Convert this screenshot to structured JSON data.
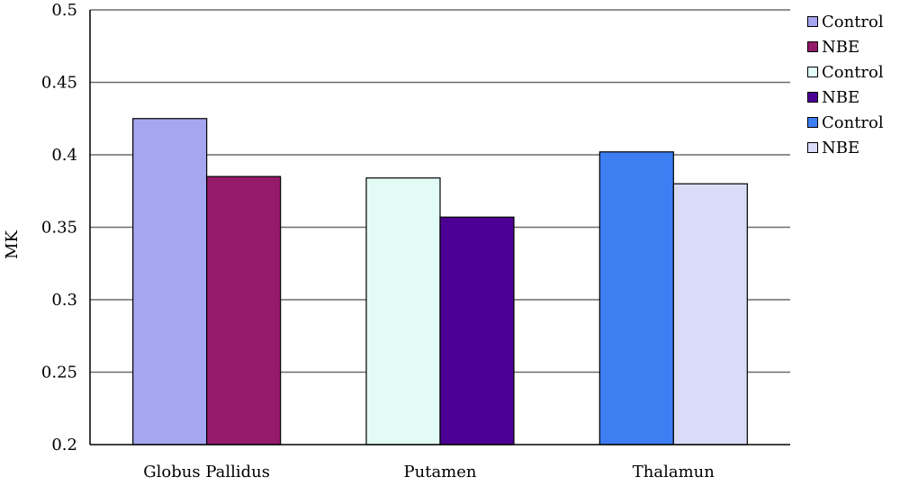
{
  "chart_data": {
    "type": "bar",
    "title": "",
    "xlabel": "",
    "ylabel": "MK",
    "ylim": [
      0.2,
      0.5
    ],
    "yticks": [
      "0.2",
      "0.25",
      "0.3",
      "0.35",
      "0.4",
      "0.45",
      "0.5"
    ],
    "grid": true,
    "legend_position": "right",
    "groups": [
      {
        "category": "Globus Pallidus",
        "bars": [
          {
            "name": "Control",
            "value": 0.425,
            "color": "#a6a6f0"
          },
          {
            "name": "NBE",
            "value": 0.385,
            "color": "#951a6a"
          }
        ]
      },
      {
        "category": "Putamen",
        "bars": [
          {
            "name": "Control",
            "value": 0.384,
            "color": "#e2fbf5"
          },
          {
            "name": "NBE",
            "value": 0.357,
            "color": "#4b0093"
          }
        ]
      },
      {
        "category": "Thalamun",
        "bars": [
          {
            "name": "Control",
            "value": 0.402,
            "color": "#3d7ef3"
          },
          {
            "name": "NBE",
            "value": 0.38,
            "color": "#dadbf7"
          }
        ]
      }
    ]
  }
}
